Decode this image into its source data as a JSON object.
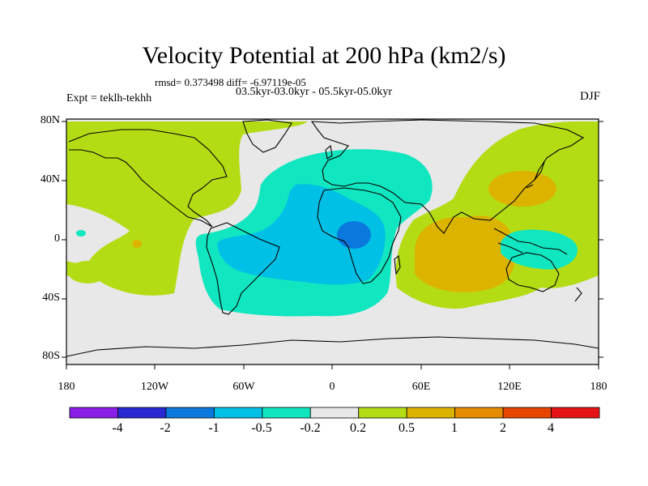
{
  "title": "Velocity Potential at 200 hPa (km2/s)",
  "stats": "rmsd= 0.373498 diff= -6.97119e-05",
  "subtitle": "03.5kyr-03.0kyr - 05.5kyr-05.0kyr",
  "experiment": "Expt = teklh-tekhh",
  "season": "DJF",
  "lat_labels": [
    "80N",
    "40N",
    "0",
    "40S",
    "80S"
  ],
  "lon_labels": [
    "180",
    "120W",
    "60W",
    "0",
    "60E",
    "120E",
    "180"
  ],
  "colorbar": {
    "labels": [
      "-4",
      "-2",
      "-1",
      "-0.5",
      "-0.2",
      "0.2",
      "0.5",
      "1",
      "2",
      "4"
    ],
    "colors": [
      "#8a1ee6",
      "#2828d2",
      "#0a78dc",
      "#00c0e6",
      "#10e6c0",
      "#e8e8e8",
      "#b4dc14",
      "#dcb400",
      "#e68c00",
      "#e64600",
      "#e61414"
    ]
  },
  "colors": {
    "neutral": "#e8e8e8",
    "pos_weak": "#b4dc14",
    "pos_mid": "#dcb400",
    "neg_weak": "#10e6c0",
    "neg_mid": "#00c0e6",
    "neg_strong": "#0a78dc",
    "coast": "#000000"
  }
}
